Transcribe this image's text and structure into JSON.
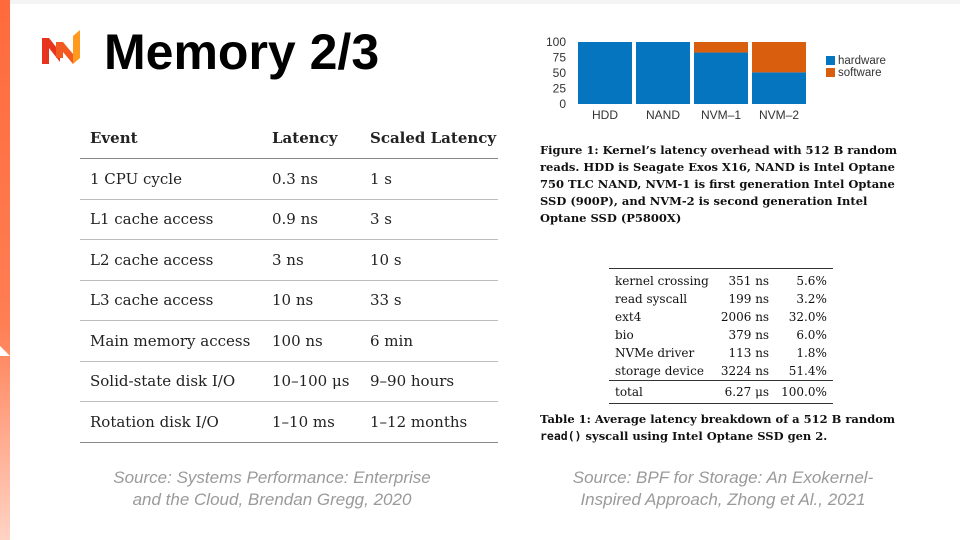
{
  "slide": {
    "title": "Memory 2/3"
  },
  "colors": {
    "accent": "#ff6a3c",
    "logo_red": "#e8331e",
    "logo_orange": "#ff9a1f",
    "hardware": "#0575c0",
    "software": "#d95f0e"
  },
  "latency_table": {
    "headers": [
      "Event",
      "Latency",
      "Scaled Latency"
    ],
    "rows": [
      [
        "1 CPU cycle",
        "0.3 ns",
        "1 s"
      ],
      [
        "L1 cache access",
        "0.9 ns",
        "3 s"
      ],
      [
        "L2 cache access",
        "3 ns",
        "10 s"
      ],
      [
        "L3 cache access",
        "10 ns",
        "33 s"
      ],
      [
        "Main memory access",
        "100 ns",
        "6 min"
      ],
      [
        "Solid-state disk I/O",
        "10–100 μs",
        "9–90 hours"
      ],
      [
        "Rotation disk I/O",
        "1–10 ms",
        "1–12 months"
      ]
    ]
  },
  "source_left": {
    "line1": "Source: Systems Performance: Enterprise",
    "line2": "and the Cloud, Brendan Gregg, 2020"
  },
  "source_right": {
    "line1": "Source: BPF for Storage: An Exokernel-",
    "line2": "Inspired Approach, Zhong et Al., 2021"
  },
  "chart_data": {
    "type": "bar",
    "stacked": true,
    "categories": [
      "HDD",
      "NAND",
      "NVM–1",
      "NVM–2"
    ],
    "series": [
      {
        "name": "hardware",
        "values": [
          100,
          100,
          83,
          51
        ]
      },
      {
        "name": "software",
        "values": [
          0,
          0,
          17,
          49
        ]
      }
    ],
    "yticks": [
      "0",
      "25",
      "50",
      "75",
      "100"
    ],
    "ylim": [
      0,
      100
    ],
    "legend": "right"
  },
  "figure_caption": "Figure 1: Kernel’s latency overhead with 512 B random reads. HDD is Seagate Exos X16, NAND is Intel Optane 750 TLC NAND, NVM-1 is first generation Intel Optane SSD (900P), and NVM-2 is second generation Intel Optane SSD (P5800X)",
  "breakdown_table": {
    "rows": [
      [
        "kernel crossing",
        "351 ns",
        "5.6%"
      ],
      [
        "read syscall",
        "199 ns",
        "3.2%"
      ],
      [
        "ext4",
        "2006 ns",
        "32.0%"
      ],
      [
        "bio",
        "379 ns",
        "6.0%"
      ],
      [
        "NVMe driver",
        "113 ns",
        "1.8%"
      ],
      [
        "storage device",
        "3224 ns",
        "51.4%"
      ]
    ],
    "total": [
      "total",
      "6.27 μs",
      "100.0%"
    ]
  },
  "table_caption": {
    "prefix": "Table 1: Average latency breakdown of a 512 B random",
    "code": "read()",
    "suffix": " syscall using Intel Optane SSD gen 2."
  }
}
